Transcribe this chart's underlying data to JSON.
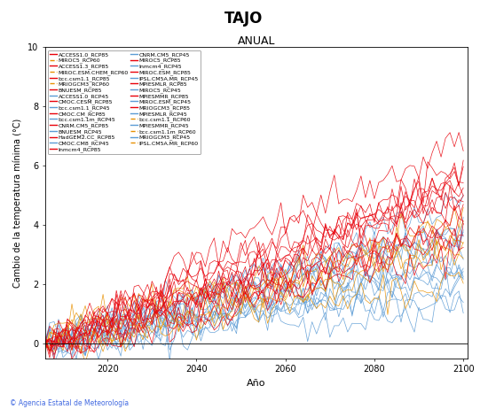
{
  "title": "TAJO",
  "subtitle": "ANUAL",
  "xlabel": "Año",
  "ylabel": "Cambio de la temperatura mínima (°C)",
  "xlim": [
    2006,
    2101
  ],
  "ylim": [
    -0.5,
    10
  ],
  "yticks": [
    0,
    2,
    4,
    6,
    8,
    10
  ],
  "xticks": [
    2020,
    2040,
    2060,
    2080,
    2100
  ],
  "rcp85_color": "#E8000A",
  "rcp60_color": "#E89000",
  "rcp45_color": "#5B9BD5",
  "background_color": "#FFFFFF",
  "legend_left": [
    [
      "ACCESS1.0_RCP85",
      "rcp85"
    ],
    [
      "ACCESS1.3_RCP85",
      "rcp85"
    ],
    [
      "bcc.csm1.1_RCP85",
      "rcp85"
    ],
    [
      "BNUESM_RCP85",
      "rcp85"
    ],
    [
      "CMOC.CESM_RCP85",
      "rcp85"
    ],
    [
      "CMOC.CM_RCP85",
      "rcp85"
    ],
    [
      "CNRM.CM5_RCP85",
      "rcp85"
    ],
    [
      "HadGEM2.CC_RCP85",
      "rcp85"
    ],
    [
      "Inmcm4_RCP85",
      "rcp85"
    ],
    [
      "MIROC5_RCP85",
      "rcp85"
    ],
    [
      "MIROC.ESM_RCP85",
      "rcp85"
    ],
    [
      "MPIESMLR_RCP85",
      "rcp85"
    ],
    [
      "MPIESMMR_RCP85",
      "rcp85"
    ],
    [
      "MRIOGCM3_RCP85",
      "rcp85"
    ],
    [
      "bcc.csm1.1_RCP60",
      "rcp60"
    ],
    [
      "bcc.csm1.1m_RCP60",
      "rcp60"
    ],
    [
      "IPSL.CM5A.MR_RCP60",
      "rcp60"
    ]
  ],
  "legend_right": [
    [
      "MIROC5_RCP60",
      "rcp60"
    ],
    [
      "MIROC.ESM.CHEM_RCP60",
      "rcp60"
    ],
    [
      "MRIOGCM3_RCP60",
      "rcp60"
    ],
    [
      "ACCESS1.0_RCP45",
      "rcp45"
    ],
    [
      "bcc.csm1.1_RCP45",
      "rcp45"
    ],
    [
      "bcc.csm1.1m_RCP45",
      "rcp45"
    ],
    [
      "BNUESM_RCP45",
      "rcp45"
    ],
    [
      "CMOC.CM8_RCP45",
      "rcp45"
    ],
    [
      "CNRM.CM5_RCP45",
      "rcp45"
    ],
    [
      "Inmcm4_RCP45",
      "rcp45"
    ],
    [
      "IPSL.CM5A.MR_RCP45",
      "rcp45"
    ],
    [
      "MIROC5_RCP45",
      "rcp45"
    ],
    [
      "MIROC.ESM_RCP45",
      "rcp45"
    ],
    [
      "MPIESMLR_RCP45",
      "rcp45"
    ],
    [
      "MPIESMMR_RCP45",
      "rcp45"
    ],
    [
      "MRIOGCM3_RCP45",
      "rcp45"
    ]
  ],
  "n_rcp85": 14,
  "n_rcp60": 6,
  "n_rcp45": 13,
  "seed": 42,
  "start_year": 2006,
  "end_year": 2100
}
